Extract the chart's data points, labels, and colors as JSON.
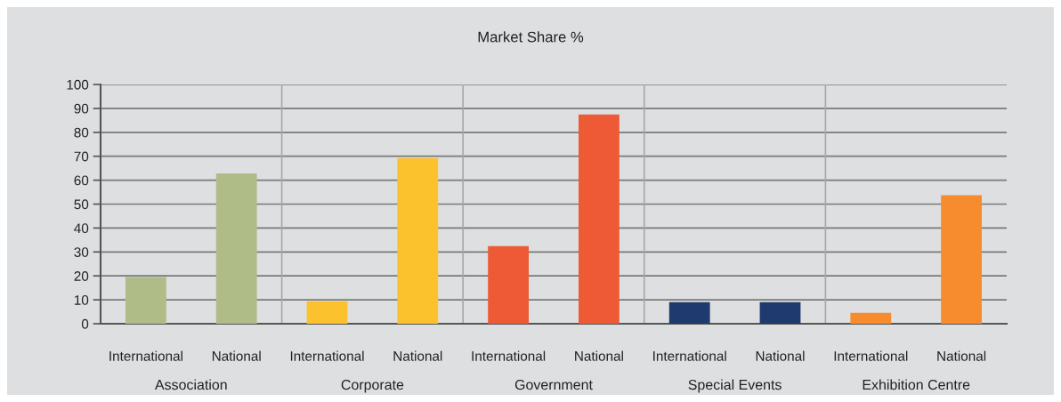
{
  "chart_data": {
    "type": "bar",
    "title": "Market Share %",
    "categories": [
      "International",
      "National",
      "International",
      "National",
      "International",
      "National",
      "International",
      "National",
      "International",
      "National"
    ],
    "values": [
      19.5,
      62.8,
      9.4,
      69.2,
      32.4,
      87.5,
      9.0,
      9.0,
      4.6,
      53.7
    ],
    "colors": [
      "#b0bc88",
      "#b0bc88",
      "#fcc22e",
      "#fcc22e",
      "#ee5a35",
      "#ee5a35",
      "#1f3a6e",
      "#1f3a6e",
      "#f68c2e",
      "#f68c2e"
    ],
    "annotations": [
      "Association",
      "Corporate",
      "Government",
      "Special Events",
      "Exhibition Centre"
    ],
    "ylim": [
      0,
      100
    ],
    "yticks": [
      0,
      10,
      20,
      30,
      40,
      50,
      60,
      70,
      80,
      90,
      100
    ],
    "grid": "y",
    "legend": false
  }
}
